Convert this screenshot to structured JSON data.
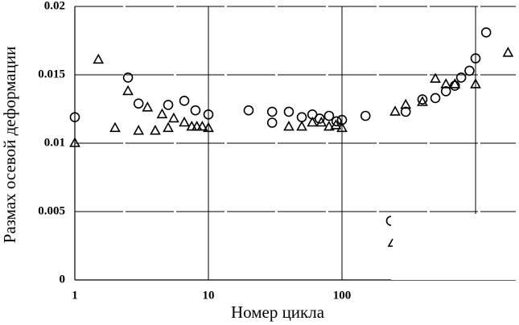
{
  "chart_data": {
    "type": "scatter",
    "x_label": "Номер цикла",
    "y_label": "Размах осевой деформации",
    "log_x": true,
    "grid": true,
    "xlim": [
      1,
      2000
    ],
    "ylim": [
      0,
      0.02
    ],
    "xticks": [
      1,
      10,
      100
    ],
    "xgrid": [
      10,
      100,
      1000
    ],
    "yticks": [
      0,
      0.005,
      0.01,
      0.015,
      0.02
    ],
    "series": [
      {
        "marker": "circle",
        "color": "#000000",
        "x": [
          1,
          2.5,
          3,
          5,
          6.6,
          8,
          10,
          20,
          30,
          30,
          40,
          50,
          60,
          68,
          80,
          91,
          100,
          150,
          300,
          400,
          500,
          600,
          700,
          780,
          900,
          1000,
          1200
        ],
        "values": [
          0.0119,
          0.0148,
          0.0129,
          0.0128,
          0.0131,
          0.0124,
          0.0121,
          0.0124,
          0.0123,
          0.0115,
          0.0123,
          0.0119,
          0.0121,
          0.0118,
          0.012,
          0.0116,
          0.0117,
          0.012,
          0.0123,
          0.0132,
          0.0133,
          0.0138,
          0.0142,
          0.0148,
          0.0153,
          0.0162,
          0.0181
        ]
      },
      {
        "marker": "triangle",
        "color": "#000000",
        "x": [
          1,
          1.5,
          2,
          2.5,
          3,
          3.5,
          4,
          4.5,
          5,
          5.5,
          6.6,
          7.5,
          8.2,
          9,
          10,
          40,
          50,
          60,
          70,
          80,
          90,
          100,
          250,
          300,
          400,
          500,
          600,
          700,
          1000,
          1750
        ],
        "values": [
          0.01,
          0.0161,
          0.0111,
          0.0138,
          0.0109,
          0.0126,
          0.0109,
          0.0121,
          0.0111,
          0.0118,
          0.0115,
          0.0112,
          0.0112,
          0.0112,
          0.0111,
          0.0112,
          0.0112,
          0.0115,
          0.0115,
          0.0112,
          0.0113,
          0.0111,
          0.0123,
          0.0128,
          0.013,
          0.0147,
          0.0143,
          0.0143,
          0.0143,
          0.0166
        ]
      }
    ]
  }
}
